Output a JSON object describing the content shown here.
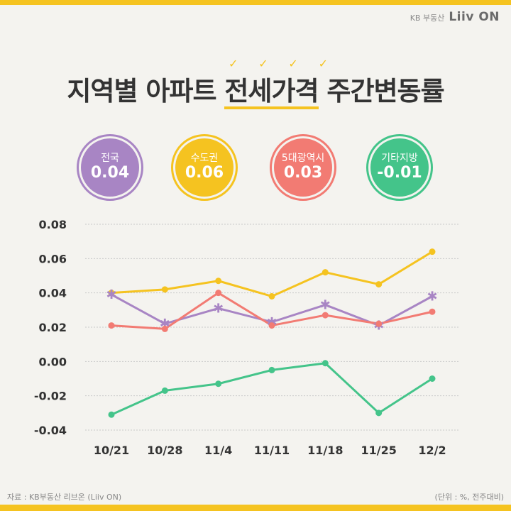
{
  "brand": {
    "kb": "KB 부동산",
    "liiv": "Liiv ON"
  },
  "title": {
    "before": "지역별 아파트 ",
    "highlight": "전세가격",
    "after": " 주간변동률"
  },
  "badges": [
    {
      "name": "전국",
      "value": "0.04",
      "color": "#a885c4"
    },
    {
      "name": "수도권",
      "value": "0.06",
      "color": "#f5c320"
    },
    {
      "name": "5대광역시",
      "value": "0.03",
      "color": "#f27b73"
    },
    {
      "name": "기타지방",
      "value": "-0.01",
      "color": "#44c48a"
    }
  ],
  "chart_data": {
    "type": "line",
    "categories": [
      "10/21",
      "10/28",
      "11/4",
      "11/11",
      "11/18",
      "11/25",
      "12/2"
    ],
    "ylim": [
      -0.04,
      0.08
    ],
    "yticks": [
      "0.08",
      "0.06",
      "0.04",
      "0.02",
      "0.00",
      "-0.02",
      "-0.04"
    ],
    "grid": true,
    "series": [
      {
        "name": "수도권",
        "color": "#f5c320",
        "marker": "circle",
        "values": [
          0.04,
          0.042,
          0.047,
          0.038,
          0.052,
          0.045,
          0.064
        ]
      },
      {
        "name": "전국",
        "color": "#a885c4",
        "marker": "star",
        "values": [
          0.039,
          0.022,
          0.031,
          0.023,
          0.033,
          0.021,
          0.038
        ]
      },
      {
        "name": "5대광역시",
        "color": "#f27b73",
        "marker": "circle",
        "values": [
          0.021,
          0.019,
          0.04,
          0.021,
          0.027,
          0.022,
          0.029
        ]
      },
      {
        "name": "기타지방",
        "color": "#44c48a",
        "marker": "circle",
        "values": [
          -0.031,
          -0.017,
          -0.013,
          -0.005,
          -0.001,
          -0.03,
          -0.01
        ]
      }
    ]
  },
  "footer": {
    "source": "자료 : KB부동산 리브온 (Liiv ON)",
    "unit": "(단위 : %, 전주대비)"
  }
}
